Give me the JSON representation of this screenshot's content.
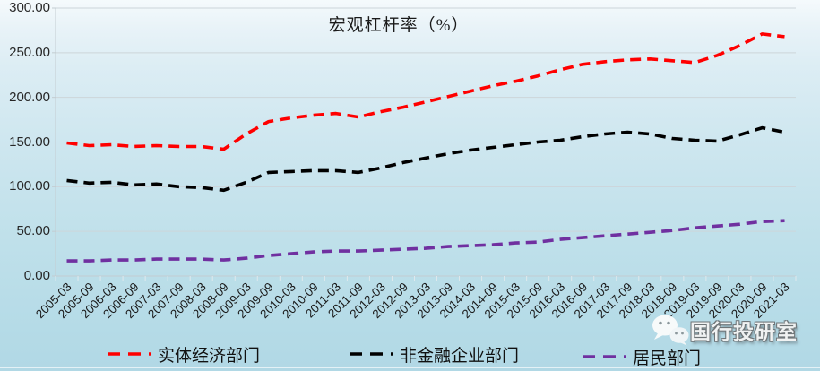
{
  "chart_data": {
    "type": "line",
    "title": "宏观杠杆率（%）",
    "line_style": "dashed",
    "grid": "horizontal",
    "legend_position": "bottom",
    "ylim": [
      0,
      300
    ],
    "ytick_step": 50,
    "ytick_labels": [
      "0.00",
      "50.00",
      "100.00",
      "150.00",
      "200.00",
      "250.00",
      "300.00"
    ],
    "categories": [
      "2005-03",
      "2005-09",
      "2006-03",
      "2006-09",
      "2007-03",
      "2007-09",
      "2008-03",
      "2008-09",
      "2009-03",
      "2009-09",
      "2010-03",
      "2010-09",
      "2011-03",
      "2011-09",
      "2012-03",
      "2012-09",
      "2013-03",
      "2013-09",
      "2014-03",
      "2014-09",
      "2015-03",
      "2015-09",
      "2016-03",
      "2016-09",
      "2017-03",
      "2017-09",
      "2018-03",
      "2018-09",
      "2019-03",
      "2019-09",
      "2020-03",
      "2020-09",
      "2021-03"
    ],
    "series": [
      {
        "name": "实体经济部门",
        "color": "#ff0000",
        "values": [
          149,
          146,
          147,
          145,
          146,
          145,
          145,
          142,
          159,
          173,
          177,
          180,
          182,
          178,
          184,
          189,
          195,
          201,
          207,
          213,
          218,
          224,
          231,
          237,
          240,
          242,
          243,
          241,
          239,
          247,
          258,
          271,
          268
        ]
      },
      {
        "name": "非金融企业部门",
        "color": "#000000",
        "values": [
          107,
          104,
          105,
          102,
          103,
          100,
          99,
          96,
          105,
          116,
          117,
          118,
          118,
          116,
          121,
          127,
          132,
          137,
          141,
          144,
          147,
          150,
          152,
          156,
          159,
          161,
          159,
          154,
          152,
          151,
          158,
          166,
          161
        ]
      },
      {
        "name": "居民部门",
        "color": "#7030a0",
        "values": [
          17,
          17,
          18,
          18,
          19,
          19,
          19,
          18,
          20,
          23,
          25,
          27,
          28,
          28,
          29,
          30,
          31,
          33,
          34,
          35,
          37,
          38,
          41,
          43,
          45,
          47,
          49,
          51,
          54,
          56,
          58,
          61,
          62
        ]
      }
    ]
  },
  "watermark": {
    "text": "国行投研室",
    "icon": "wechat-icon"
  },
  "colors": {
    "background_top": "#f5fafc",
    "background_bottom": "#b1d8e5",
    "gridline": "#ccd5d9",
    "axis": "#c3ccd1",
    "tick": "#dfe9ed",
    "series_red": "#ff0000",
    "series_black": "#000000",
    "series_purple": "#7030a0"
  }
}
